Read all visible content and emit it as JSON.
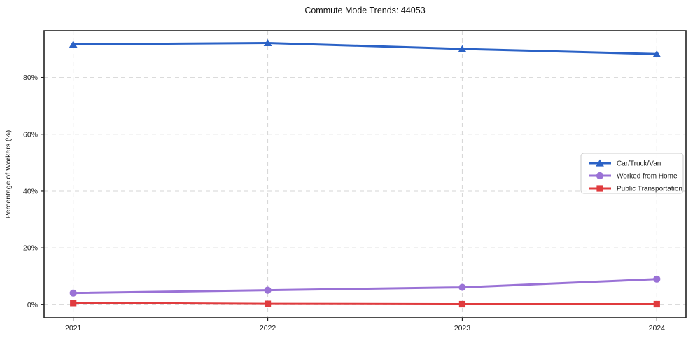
{
  "title": "Commute Mode Trends: 44053",
  "chart_data": {
    "type": "line",
    "title": "Commute Mode Trends: 44053",
    "xlabel": "",
    "ylabel": "Percentage of Workers (%)",
    "x": [
      2021,
      2022,
      2023,
      2024
    ],
    "x_tick_labels": [
      "2021",
      "2022",
      "2023",
      "2024"
    ],
    "y_ticks": [
      0,
      20,
      40,
      60,
      80
    ],
    "y_tick_labels": [
      "0%",
      "20%",
      "40%",
      "60%",
      "80%"
    ],
    "xlim": [
      2020.85,
      2024.15
    ],
    "ylim": [
      -4.6,
      96.4
    ],
    "grid": true,
    "grid_style": "dashed",
    "legend_position": "center-right",
    "series": [
      {
        "name": "Car/Truck/Van",
        "marker": "triangle",
        "color": "#2b62c6",
        "values": [
          91.6,
          92.1,
          90.0,
          88.2
        ]
      },
      {
        "name": "Worked from Home",
        "marker": "circle",
        "color": "#9a72d6",
        "values": [
          4.1,
          5.1,
          6.1,
          9.0
        ]
      },
      {
        "name": "Public Transportation",
        "marker": "square",
        "color": "#e03b3e",
        "values": [
          0.6,
          0.3,
          0.2,
          0.2
        ]
      }
    ]
  },
  "colors": {
    "background": "#ffffff",
    "axis": "#222222",
    "text": "#1a1a1a",
    "grid": "#d6d6d6",
    "legend_border": "#cccccc",
    "legend_background": "#ffffff"
  }
}
